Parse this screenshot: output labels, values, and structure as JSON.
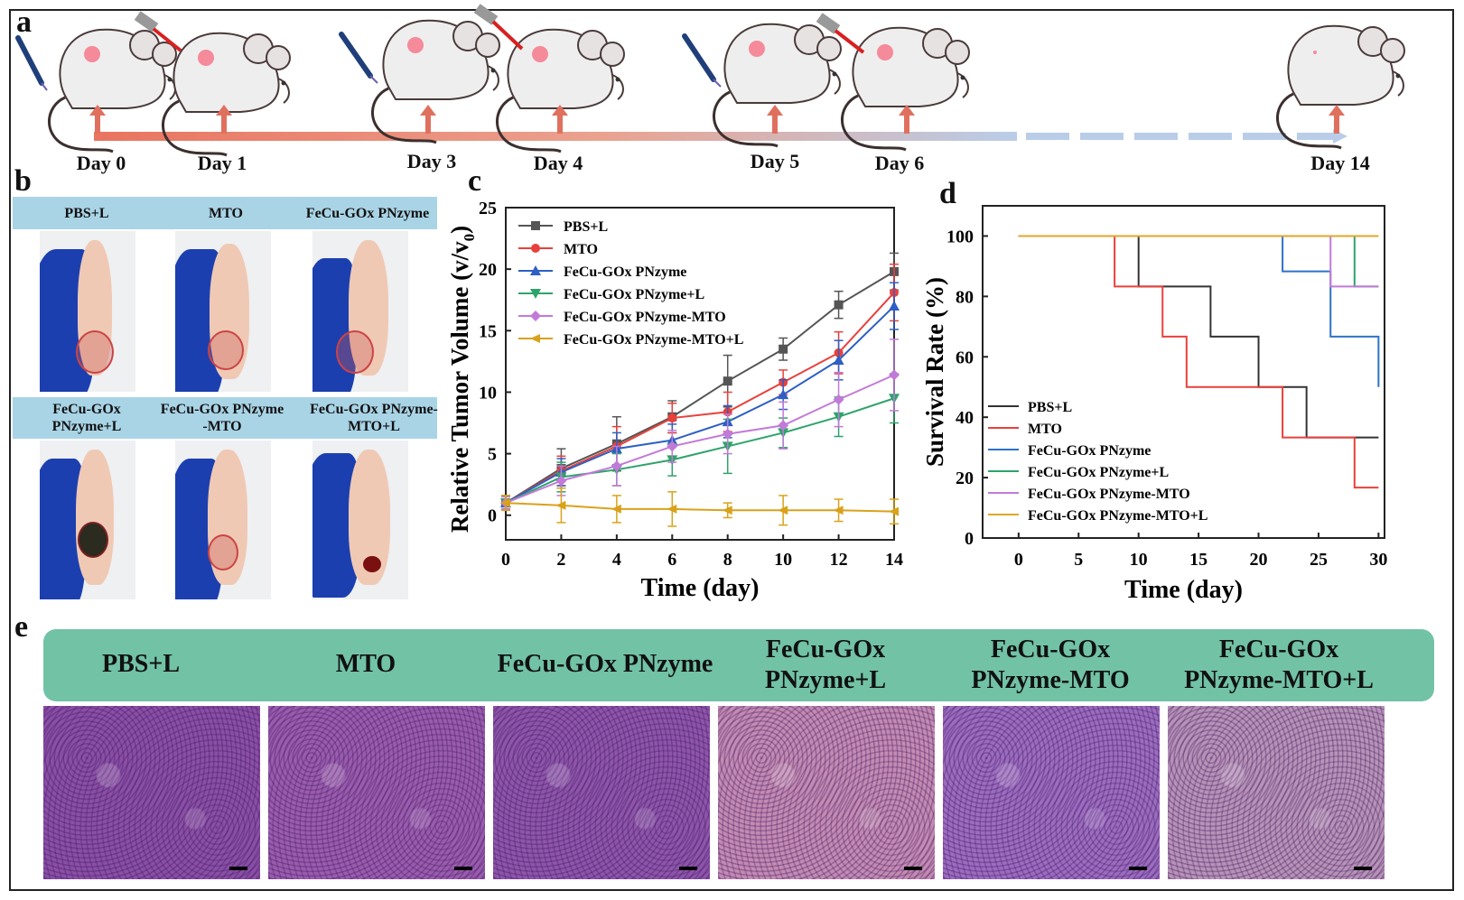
{
  "panels": {
    "a": "a",
    "b": "b",
    "c": "c",
    "d": "d",
    "e": "e"
  },
  "timeline": {
    "days": [
      "Day 0",
      "Day 1",
      "Day 3",
      "Day 4",
      "Day 5",
      "Day 6",
      "Day 14"
    ]
  },
  "photos": {
    "row1": [
      "PBS+L",
      "MTO",
      "FeCu-GOx PNzyme"
    ],
    "row2": [
      {
        "l1": "FeCu-GOx",
        "l2": "PNzyme+L"
      },
      {
        "l1": "FeCu-GOx PNzyme",
        "l2": "-MTO"
      },
      {
        "l1": "FeCu-GOx PNzyme-",
        "l2": "MTO+L"
      }
    ]
  },
  "chart_data": [
    {
      "type": "line",
      "title": "",
      "xlabel": "Time (day)",
      "ylabel": "Relative Tumor Volume (v/v0)",
      "ylabel_main": "Relative Tumor Volume (v/v",
      "ylabel_sub": "0",
      "ylabel_end": ")",
      "xlim": [
        0,
        14
      ],
      "ylim": [
        -2,
        25
      ],
      "xticks": [
        "0",
        "2",
        "4",
        "6",
        "8",
        "10",
        "12",
        "14"
      ],
      "yticks": [
        "0",
        "5",
        "10",
        "15",
        "20",
        "25"
      ],
      "x": [
        0,
        2,
        4,
        6,
        8,
        10,
        12,
        14
      ],
      "series": [
        {
          "name": "PBS+L",
          "color": "#555555",
          "marker": "square",
          "values": [
            1,
            3.8,
            5.8,
            8,
            10.9,
            13.5,
            17.1,
            19.8
          ],
          "err": [
            0.6,
            1.6,
            2.2,
            1.3,
            2.1,
            0.9,
            1.1,
            1.5
          ]
        },
        {
          "name": "MTO",
          "color": "#e8413c",
          "marker": "circle",
          "values": [
            1,
            3.6,
            5.6,
            7.9,
            8.4,
            10.8,
            13.2,
            18.1
          ],
          "err": [
            0.5,
            1.2,
            1.6,
            1.2,
            1.6,
            1.0,
            1.7,
            2.3
          ]
        },
        {
          "name": "FeCu-GOx PNzyme",
          "color": "#2d5fc4",
          "marker": "triangle-up",
          "values": [
            1,
            3.5,
            5.4,
            6.1,
            7.6,
            9.8,
            12.6,
            17.0
          ],
          "err": [
            0.5,
            1.1,
            1.3,
            1.3,
            1.3,
            1.2,
            1.6,
            1.9
          ]
        },
        {
          "name": "FeCu-GOx PNzyme+L",
          "color": "#2ea36b",
          "marker": "triangle-down",
          "values": [
            1,
            3.1,
            3.7,
            4.5,
            5.6,
            6.7,
            8.0,
            9.5
          ],
          "err": [
            0.6,
            1.2,
            1.3,
            1.3,
            2.2,
            1.2,
            1.6,
            2.0
          ]
        },
        {
          "name": "FeCu-GOx PNzyme-MTO",
          "color": "#c27ad8",
          "marker": "diamond",
          "values": [
            1,
            2.8,
            4.0,
            5.6,
            6.6,
            7.3,
            9.4,
            11.4
          ],
          "err": [
            0.5,
            1.2,
            1.6,
            1.3,
            1.6,
            1.9,
            2.2,
            2.9
          ]
        },
        {
          "name": "FeCu-GOx PNzyme-MTO+L",
          "color": "#d9a21b",
          "marker": "triangle-left",
          "values": [
            1,
            0.8,
            0.5,
            0.5,
            0.4,
            0.4,
            0.4,
            0.3
          ],
          "err": [
            0.6,
            1.4,
            1.1,
            1.4,
            0.6,
            1.2,
            0.9,
            1.0
          ]
        }
      ]
    },
    {
      "type": "line",
      "step": true,
      "title": "",
      "xlabel": "Time (day)",
      "ylabel": "Survival Rate (%)",
      "xlim": [
        -3,
        30.5
      ],
      "ylim": [
        0,
        110
      ],
      "xticks": [
        "0",
        "5",
        "10",
        "15",
        "20",
        "25",
        "30"
      ],
      "yticks": [
        "0",
        "20",
        "40",
        "60",
        "80",
        "100"
      ],
      "series": [
        {
          "name": "PBS+L",
          "color": "#333333",
          "points": [
            [
              0,
              100
            ],
            [
              10,
              100
            ],
            [
              10,
              83.3
            ],
            [
              16,
              83.3
            ],
            [
              16,
              66.7
            ],
            [
              20,
              66.7
            ],
            [
              20,
              50
            ],
            [
              24,
              50
            ],
            [
              24,
              33.3
            ],
            [
              30,
              33.3
            ]
          ]
        },
        {
          "name": "MTO",
          "color": "#e8413c",
          "points": [
            [
              0,
              100
            ],
            [
              8,
              100
            ],
            [
              8,
              83.3
            ],
            [
              12,
              83.3
            ],
            [
              12,
              66.7
            ],
            [
              14,
              66.7
            ],
            [
              14,
              50
            ],
            [
              22,
              50
            ],
            [
              22,
              33.3
            ],
            [
              28,
              33.3
            ],
            [
              28,
              16.7
            ],
            [
              30,
              16.7
            ]
          ]
        },
        {
          "name": "FeCu-GOx PNzyme",
          "color": "#2d73c9",
          "points": [
            [
              0,
              100
            ],
            [
              22,
              100
            ],
            [
              22,
              88.3
            ],
            [
              26,
              88.3
            ],
            [
              26,
              66.7
            ],
            [
              30,
              66.7
            ],
            [
              30,
              50
            ]
          ]
        },
        {
          "name": "FeCu-GOx PNzyme+L",
          "color": "#2ea36b",
          "points": [
            [
              0,
              100
            ],
            [
              28,
              100
            ],
            [
              28,
              83.3
            ],
            [
              30,
              83.3
            ]
          ]
        },
        {
          "name": "FeCu-GOx PNzyme-MTO",
          "color": "#c27ad8",
          "points": [
            [
              0,
              100
            ],
            [
              26,
              100
            ],
            [
              26,
              83.3
            ],
            [
              30,
              83.3
            ]
          ]
        },
        {
          "name": "FeCu-GOx PNzyme-MTO+L",
          "color": "#e0a629",
          "points": [
            [
              0,
              100
            ],
            [
              30,
              100
            ]
          ]
        }
      ]
    }
  ],
  "histology": [
    {
      "l1": "PBS+L",
      "l2": "",
      "tone": "#8a4fa6"
    },
    {
      "l1": "MTO",
      "l2": "",
      "tone": "#9a5cae"
    },
    {
      "l1": "FeCu-GOx PNzyme",
      "l2": "",
      "tone": "#8e55ab"
    },
    {
      "l1": "FeCu-GOx",
      "l2": "PNzyme+L",
      "tone": "#c48bb3"
    },
    {
      "l1": "FeCu-GOx",
      "l2": "PNzyme-MTO",
      "tone": "#9c6cc0"
    },
    {
      "l1": "FeCu-GOx",
      "l2": "PNzyme-MTO+L",
      "tone": "#b893b8"
    }
  ]
}
